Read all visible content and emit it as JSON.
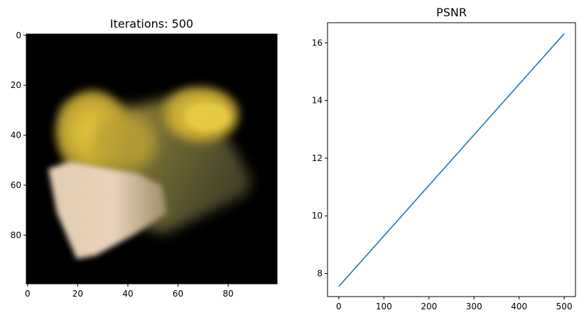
{
  "chart_data": [
    {
      "type": "heatmap",
      "title": "Iterations: 500",
      "xlabel": "",
      "ylabel": "",
      "xlim": [
        -0.5,
        99.5
      ],
      "ylim": [
        99.5,
        -0.5
      ],
      "x_ticks": [
        0,
        20,
        40,
        60,
        80
      ],
      "y_ticks": [
        0,
        20,
        40,
        60,
        80
      ],
      "x_tick_labels": [
        "0",
        "20",
        "40",
        "60",
        "80"
      ],
      "y_tick_labels": [
        "0",
        "20",
        "40",
        "60",
        "80"
      ],
      "grid": false,
      "background_color": "#000000",
      "colors": {
        "yellow": "#d6b93a",
        "olive": "#6e6a35",
        "beige": "#e6d2ba"
      }
    },
    {
      "type": "line",
      "title": "PSNR",
      "xlabel": "",
      "ylabel": "",
      "xlim": [
        -25,
        525
      ],
      "ylim": [
        7.2,
        16.7
      ],
      "x_ticks": [
        0,
        100,
        200,
        300,
        400,
        500
      ],
      "y_ticks": [
        8,
        10,
        12,
        14,
        16
      ],
      "x_tick_labels": [
        "0",
        "100",
        "200",
        "300",
        "400",
        "500"
      ],
      "y_tick_labels": [
        "8",
        "10",
        "12",
        "14",
        "16"
      ],
      "grid": false,
      "series": [
        {
          "color": "#1f77b4",
          "x": [
            0,
            500
          ],
          "values": [
            7.55,
            16.32
          ]
        }
      ]
    }
  ]
}
